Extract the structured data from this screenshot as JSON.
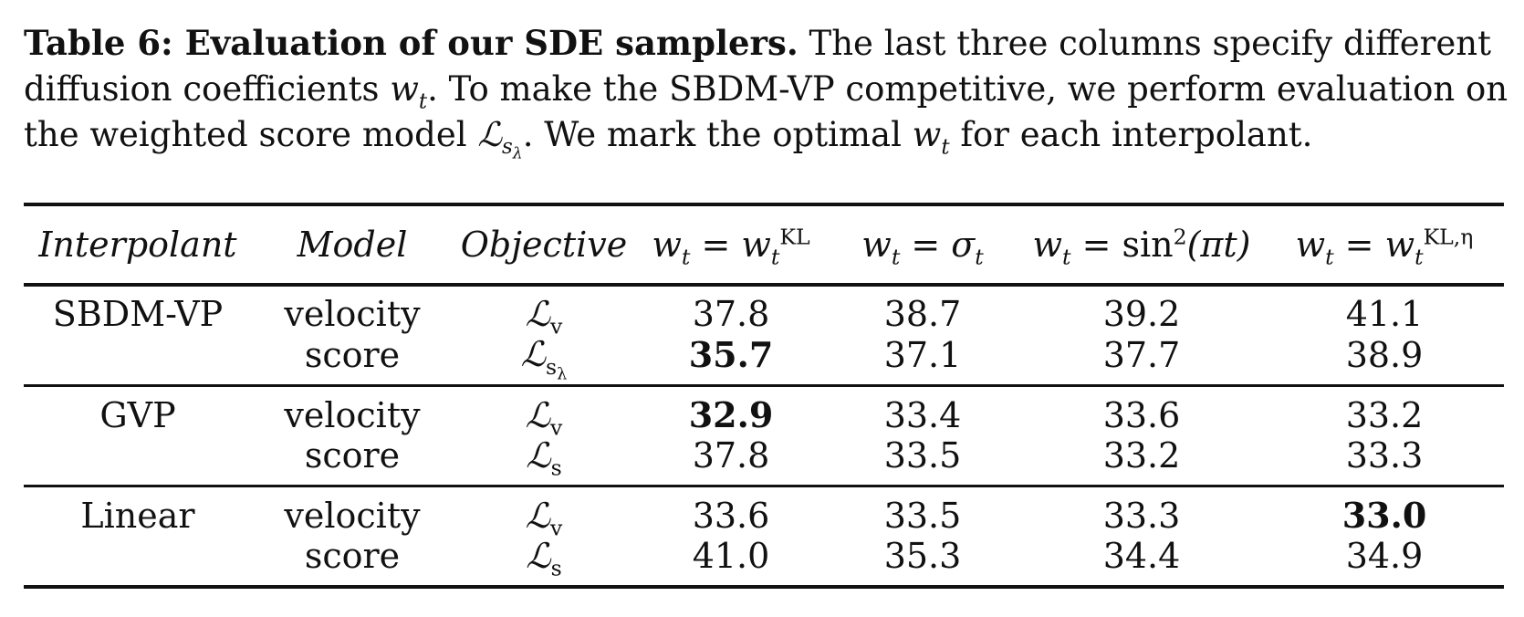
{
  "caption": {
    "lead": "Table 6: Evaluation of our SDE samplers.",
    "text1": " The last three columns specify different diffusion coefficients ",
    "wt": "w",
    "wt_sub": "t",
    "text2": ". To make the SBDM-VP competitive, we perform evaluation on the weighted score model ",
    "L": "ℒ",
    "L_sub": "s",
    "L_subsub": "λ",
    "text3": ". We mark the optimal ",
    "text4": " for each interpolant."
  },
  "table": {
    "headers": {
      "interpolant": "Interpolant",
      "model": "Model",
      "objective": "Objective",
      "col_kl": {
        "lhs": "w",
        "lhs_sub": "t",
        "eq": " = ",
        "rhs": "w",
        "rhs_sub": "t",
        "rhs_sup": "KL"
      },
      "col_sigma": {
        "lhs": "w",
        "lhs_sub": "t",
        "eq": " = ",
        "rhs": "σ",
        "rhs_sub": "t"
      },
      "col_sin": {
        "lhs": "w",
        "lhs_sub": "t",
        "eq": " = sin",
        "sup": "2",
        "arg": "(πt)"
      },
      "col_kleta": {
        "lhs": "w",
        "lhs_sub": "t",
        "eq": " = ",
        "rhs": "w",
        "rhs_sub": "t",
        "rhs_sup": "KL,η"
      }
    },
    "groups": [
      {
        "interpolant": "SBDM-VP",
        "rows": [
          {
            "model": "velocity",
            "obj_sub": "v",
            "obj_subsub": "",
            "values": [
              "37.8",
              "38.7",
              "39.2",
              "41.1"
            ],
            "bold": [
              false,
              false,
              false,
              false
            ]
          },
          {
            "model": "score",
            "obj_sub": "s",
            "obj_subsub": "λ",
            "values": [
              "35.7",
              "37.1",
              "37.7",
              "38.9"
            ],
            "bold": [
              true,
              false,
              false,
              false
            ]
          }
        ]
      },
      {
        "interpolant": "GVP",
        "rows": [
          {
            "model": "velocity",
            "obj_sub": "v",
            "obj_subsub": "",
            "values": [
              "32.9",
              "33.4",
              "33.6",
              "33.2"
            ],
            "bold": [
              true,
              false,
              false,
              false
            ]
          },
          {
            "model": "score",
            "obj_sub": "s",
            "obj_subsub": "",
            "values": [
              "37.8",
              "33.5",
              "33.2",
              "33.3"
            ],
            "bold": [
              false,
              false,
              false,
              false
            ]
          }
        ]
      },
      {
        "interpolant": "Linear",
        "rows": [
          {
            "model": "velocity",
            "obj_sub": "v",
            "obj_subsub": "",
            "values": [
              "33.6",
              "33.5",
              "33.3",
              "33.0"
            ],
            "bold": [
              false,
              false,
              false,
              true
            ]
          },
          {
            "model": "score",
            "obj_sub": "s",
            "obj_subsub": "",
            "values": [
              "41.0",
              "35.3",
              "34.4",
              "34.9"
            ],
            "bold": [
              false,
              false,
              false,
              false
            ]
          }
        ]
      }
    ],
    "objective_symbol": "ℒ"
  }
}
